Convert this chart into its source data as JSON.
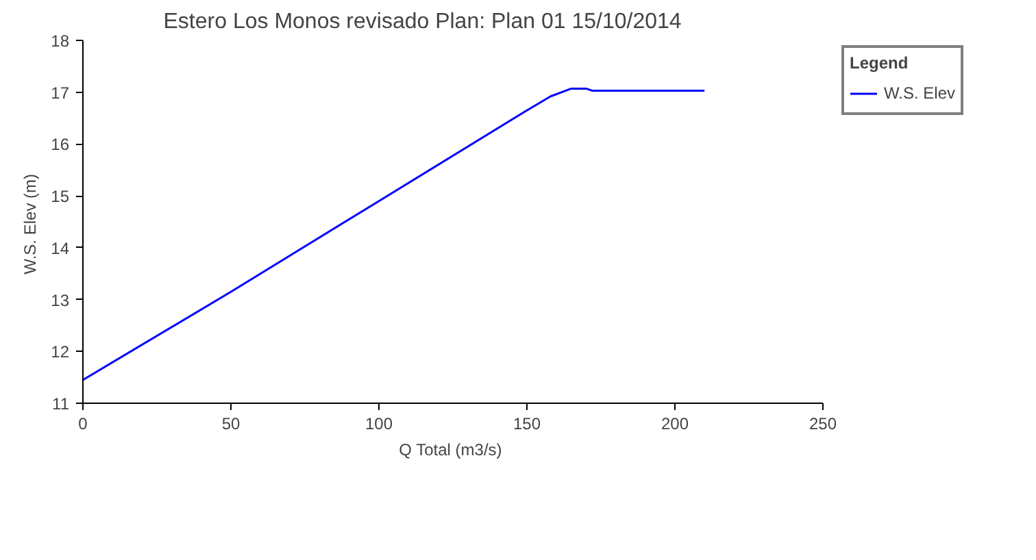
{
  "chart_data": {
    "type": "line",
    "title": "Estero Los Monos revisado       Plan: Plan 01     15/10/2014",
    "xlabel": "Q Total  (m3/s)",
    "ylabel": "W.S. Elev  (m)",
    "legend_title": "Legend",
    "x": [
      0,
      50,
      100,
      150,
      158,
      165,
      170,
      172,
      210
    ],
    "series": [
      {
        "name": "W.S. Elev",
        "color": "#0000ff",
        "values": [
          11.45,
          13.15,
          14.9,
          16.65,
          16.92,
          17.07,
          17.07,
          17.03,
          17.03
        ]
      }
    ],
    "xlim": [
      0,
      250
    ],
    "xticks": [
      0,
      50,
      100,
      150,
      200,
      250
    ],
    "ylim": [
      11,
      18
    ],
    "yticks": [
      11,
      12,
      13,
      14,
      15,
      16,
      17,
      18
    ],
    "grid": false,
    "legend": "right",
    "marker": "none",
    "line_style": "solid"
  }
}
